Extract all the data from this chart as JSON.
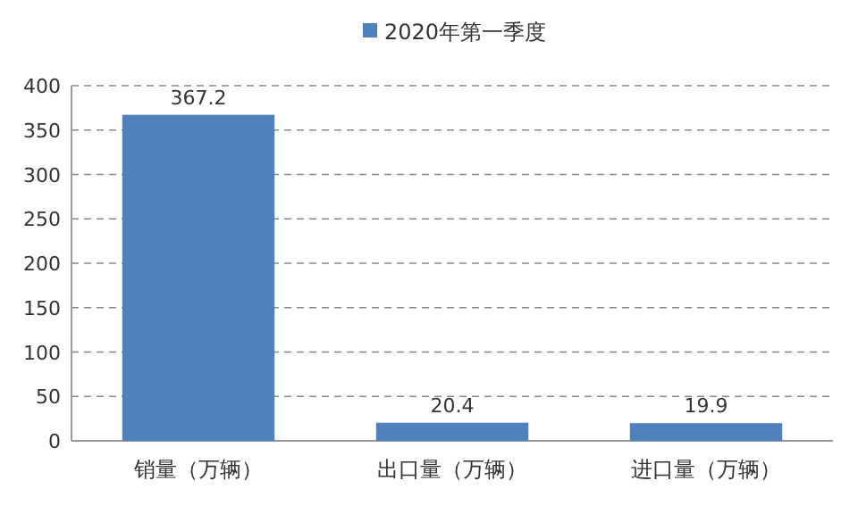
{
  "chart_data": {
    "type": "bar",
    "categories": [
      "销量（万辆）",
      "出口量（万辆）",
      "进口量（万辆）"
    ],
    "series": [
      {
        "name": "2020年第一季度",
        "color": "#4f81bd",
        "values": [
          367.2,
          20.4,
          19.9
        ]
      }
    ],
    "ylim": [
      0,
      400
    ],
    "yticks": [
      0,
      50,
      100,
      150,
      200,
      250,
      300,
      350,
      400
    ],
    "grid": "y",
    "legend": "top",
    "data_labels": true
  }
}
